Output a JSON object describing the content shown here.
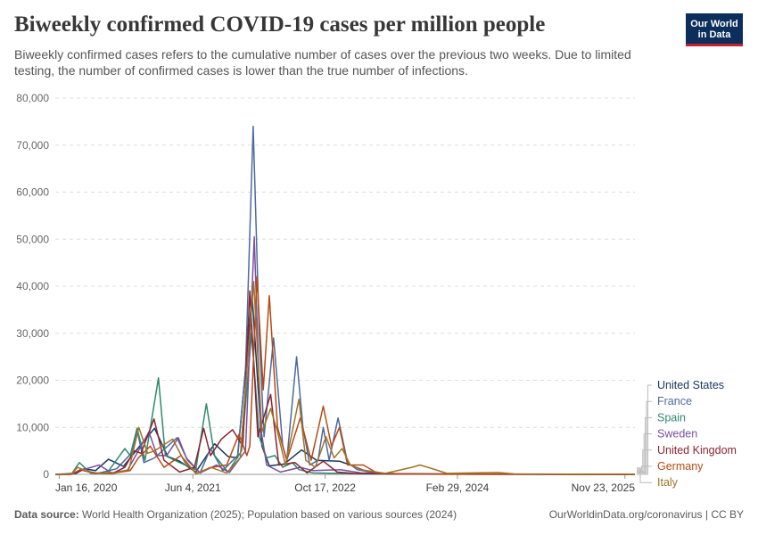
{
  "title": "Biweekly confirmed COVID-19 cases per million people",
  "subtitle": "Biweekly confirmed cases refers to the cumulative number of cases over the previous two weeks. Due to limited testing, the number of confirmed cases is lower than the true number of infections.",
  "logo": {
    "line1": "Our World",
    "line2": "in Data"
  },
  "footer": {
    "source_label": "Data source:",
    "source_text": "World Health Organization (2025); Population based on various sources (2024)",
    "right_text": "OurWorldinData.org/coronavirus | CC BY"
  },
  "chart_data": {
    "type": "line",
    "title": "Biweekly confirmed COVID-19 cases per million people",
    "xlabel": "",
    "ylabel": "",
    "ylim": [
      0,
      80000
    ],
    "yticks": [
      0,
      10000,
      20000,
      30000,
      40000,
      50000,
      60000,
      70000,
      80000
    ],
    "ytick_labels": [
      "0",
      "10,000",
      "20,000",
      "30,000",
      "40,000",
      "50,000",
      "60,000",
      "70,000",
      "80,000"
    ],
    "xlim": [
      "2020-01-01",
      "2025-12-31"
    ],
    "xticks": [
      "2020-01-16",
      "2021-06-04",
      "2022-10-17",
      "2024-02-29",
      "2025-11-23"
    ],
    "xtick_labels": [
      "Jan 16, 2020",
      "Jun 4, 2021",
      "Oct 17, 2022",
      "Feb 29, 2024",
      "Nov 23, 2025"
    ],
    "grid": "horizontal",
    "legend_position": "right",
    "series": [
      {
        "name": "United States",
        "color": "#18365e",
        "points": [
          [
            "2020-01-01",
            0
          ],
          [
            "2020-03-20",
            200
          ],
          [
            "2020-04-20",
            1200
          ],
          [
            "2020-06-01",
            800
          ],
          [
            "2020-07-20",
            3200
          ],
          [
            "2020-09-15",
            1700
          ],
          [
            "2020-11-15",
            6000
          ],
          [
            "2021-01-10",
            9800
          ],
          [
            "2021-03-01",
            3800
          ],
          [
            "2021-04-15",
            2800
          ],
          [
            "2021-06-15",
            500
          ],
          [
            "2021-08-25",
            6500
          ],
          [
            "2021-10-15",
            3800
          ],
          [
            "2021-11-20",
            3500
          ],
          [
            "2022-01-14",
            38000
          ],
          [
            "2022-02-20",
            6000
          ],
          [
            "2022-03-20",
            1800
          ],
          [
            "2022-05-15",
            2200
          ],
          [
            "2022-07-20",
            5200
          ],
          [
            "2022-09-15",
            3000
          ],
          [
            "2022-12-10",
            2800
          ],
          [
            "2023-01-20",
            2000
          ],
          [
            "2023-03-15",
            800
          ],
          [
            "2023-05-01",
            200
          ],
          [
            "2023-08-01",
            150
          ],
          [
            "2024-01-01",
            100
          ],
          [
            "2025-12-31",
            0
          ]
        ]
      },
      {
        "name": "France",
        "color": "#4c6a9c",
        "points": [
          [
            "2020-01-01",
            0
          ],
          [
            "2020-03-01",
            0
          ],
          [
            "2020-04-05",
            1000
          ],
          [
            "2020-06-01",
            100
          ],
          [
            "2020-08-20",
            1200
          ],
          [
            "2020-10-15",
            4500
          ],
          [
            "2020-11-05",
            9500
          ],
          [
            "2020-12-01",
            2500
          ],
          [
            "2021-01-10",
            3500
          ],
          [
            "2021-04-05",
            7800
          ],
          [
            "2021-05-15",
            3000
          ],
          [
            "2021-07-01",
            300
          ],
          [
            "2021-08-10",
            5500
          ],
          [
            "2021-09-25",
            800
          ],
          [
            "2021-11-20",
            4000
          ],
          [
            "2021-12-20",
            22000
          ],
          [
            "2022-01-18",
            74000
          ],
          [
            "2022-02-10",
            30000
          ],
          [
            "2022-02-28",
            8000
          ],
          [
            "2022-04-05",
            29000
          ],
          [
            "2022-05-10",
            6000
          ],
          [
            "2022-05-25",
            3000
          ],
          [
            "2022-07-01",
            25000
          ],
          [
            "2022-07-25",
            10000
          ],
          [
            "2022-08-20",
            2000
          ],
          [
            "2022-09-20",
            3000
          ],
          [
            "2022-10-10",
            10000
          ],
          [
            "2022-11-01",
            3000
          ],
          [
            "2022-12-05",
            12000
          ],
          [
            "2023-01-10",
            2500
          ],
          [
            "2023-02-15",
            1000
          ],
          [
            "2023-05-01",
            200
          ],
          [
            "2023-08-01",
            100
          ],
          [
            "2024-01-01",
            50
          ],
          [
            "2025-12-31",
            0
          ]
        ]
      },
      {
        "name": "Spain",
        "color": "#2e8a6e",
        "points": [
          [
            "2020-01-01",
            0
          ],
          [
            "2020-03-01",
            0
          ],
          [
            "2020-04-01",
            2500
          ],
          [
            "2020-05-15",
            200
          ],
          [
            "2020-07-15",
            300
          ],
          [
            "2020-09-20",
            5500
          ],
          [
            "2020-10-10",
            4000
          ],
          [
            "2020-11-05",
            9800
          ],
          [
            "2020-12-05",
            3000
          ],
          [
            "2021-01-25",
            20500
          ],
          [
            "2021-02-20",
            4000
          ],
          [
            "2021-04-15",
            2500
          ],
          [
            "2021-06-15",
            1000
          ],
          [
            "2021-07-25",
            15000
          ],
          [
            "2021-08-25",
            4000
          ],
          [
            "2021-10-15",
            500
          ],
          [
            "2021-12-05",
            5000
          ],
          [
            "2022-01-12",
            30000
          ],
          [
            "2022-02-10",
            8000
          ],
          [
            "2022-03-10",
            3500
          ],
          [
            "2022-04-10",
            4000
          ],
          [
            "2022-05-10",
            1500
          ],
          [
            "2022-06-15",
            2500
          ],
          [
            "2022-07-10",
            1000
          ],
          [
            "2022-09-01",
            300
          ],
          [
            "2022-12-01",
            200
          ],
          [
            "2023-03-01",
            100
          ],
          [
            "2023-08-01",
            50
          ],
          [
            "2024-01-01",
            30
          ],
          [
            "2025-12-31",
            0
          ]
        ]
      },
      {
        "name": "Sweden",
        "color": "#7b4fa0",
        "points": [
          [
            "2020-01-01",
            0
          ],
          [
            "2020-03-01",
            0
          ],
          [
            "2020-04-15",
            1000
          ],
          [
            "2020-06-15",
            2000
          ],
          [
            "2020-08-01",
            300
          ],
          [
            "2020-09-30",
            900
          ],
          [
            "2020-11-15",
            5500
          ],
          [
            "2020-12-20",
            9000
          ],
          [
            "2021-01-20",
            4000
          ],
          [
            "2021-02-25",
            4000
          ],
          [
            "2021-04-10",
            7800
          ],
          [
            "2021-05-10",
            3500
          ],
          [
            "2021-07-01",
            300
          ],
          [
            "2021-09-01",
            2000
          ],
          [
            "2021-10-20",
            400
          ],
          [
            "2021-12-20",
            5000
          ],
          [
            "2022-01-22",
            50500
          ],
          [
            "2022-02-15",
            10000
          ],
          [
            "2022-03-10",
            2000
          ],
          [
            "2022-05-01",
            500
          ],
          [
            "2022-07-15",
            1500
          ],
          [
            "2022-09-01",
            800
          ],
          [
            "2022-12-15",
            1000
          ],
          [
            "2023-03-01",
            300
          ],
          [
            "2023-08-01",
            100
          ],
          [
            "2024-01-01",
            50
          ],
          [
            "2025-12-31",
            0
          ]
        ]
      },
      {
        "name": "United Kingdom",
        "color": "#8b2332",
        "points": [
          [
            "2020-01-01",
            0
          ],
          [
            "2020-03-01",
            0
          ],
          [
            "2020-04-10",
            900
          ],
          [
            "2020-06-01",
            300
          ],
          [
            "2020-08-01",
            100
          ],
          [
            "2020-09-20",
            1500
          ],
          [
            "2020-10-25",
            5000
          ],
          [
            "2020-11-20",
            4500
          ],
          [
            "2021-01-08",
            11800
          ],
          [
            "2021-02-15",
            3000
          ],
          [
            "2021-04-15",
            500
          ],
          [
            "2021-06-10",
            1500
          ],
          [
            "2021-07-15",
            9800
          ],
          [
            "2021-08-10",
            4000
          ],
          [
            "2021-09-20",
            7500
          ],
          [
            "2021-11-01",
            9500
          ],
          [
            "2021-12-10",
            6000
          ],
          [
            "2022-01-05",
            39000
          ],
          [
            "2022-02-05",
            8000
          ],
          [
            "2022-03-25",
            17000
          ],
          [
            "2022-04-25",
            2000
          ],
          [
            "2022-06-25",
            2500
          ],
          [
            "2022-08-10",
            300
          ],
          [
            "2022-10-10",
            2800
          ],
          [
            "2022-12-01",
            500
          ],
          [
            "2023-02-01",
            200
          ],
          [
            "2023-06-01",
            100
          ],
          [
            "2024-01-01",
            20
          ],
          [
            "2025-12-31",
            0
          ]
        ]
      },
      {
        "name": "Germany",
        "color": "#b54a13",
        "points": [
          [
            "2020-01-01",
            0
          ],
          [
            "2020-03-01",
            0
          ],
          [
            "2020-04-05",
            1000
          ],
          [
            "2020-06-01",
            200
          ],
          [
            "2020-08-15",
            300
          ],
          [
            "2020-10-10",
            800
          ],
          [
            "2020-11-10",
            3500
          ],
          [
            "2020-12-25",
            6000
          ],
          [
            "2021-02-15",
            1500
          ],
          [
            "2021-04-20",
            4000
          ],
          [
            "2021-06-15",
            200
          ],
          [
            "2021-08-15",
            1500
          ],
          [
            "2021-10-10",
            2000
          ],
          [
            "2021-11-25",
            8500
          ],
          [
            "2021-12-25",
            4000
          ],
          [
            "2022-01-05",
            6000
          ],
          [
            "2022-02-01",
            42000
          ],
          [
            "2022-02-25",
            18000
          ],
          [
            "2022-03-20",
            38000
          ],
          [
            "2022-04-20",
            10000
          ],
          [
            "2022-05-25",
            3000
          ],
          [
            "2022-07-15",
            12000
          ],
          [
            "2022-08-25",
            3000
          ],
          [
            "2022-10-10",
            14500
          ],
          [
            "2022-11-10",
            6000
          ],
          [
            "2022-12-10",
            10000
          ],
          [
            "2023-01-10",
            2000
          ],
          [
            "2023-03-10",
            2000
          ],
          [
            "2023-05-01",
            300
          ],
          [
            "2023-08-01",
            100
          ],
          [
            "2024-01-01",
            50
          ],
          [
            "2025-12-31",
            0
          ]
        ]
      },
      {
        "name": "Italy",
        "color": "#a0722a",
        "points": [
          [
            "2020-01-01",
            0
          ],
          [
            "2020-03-01",
            0
          ],
          [
            "2020-03-25",
            1500
          ],
          [
            "2020-05-15",
            300
          ],
          [
            "2020-08-01",
            100
          ],
          [
            "2020-10-05",
            1000
          ],
          [
            "2020-11-12",
            10000
          ],
          [
            "2020-12-15",
            4500
          ],
          [
            "2021-01-10",
            5000
          ],
          [
            "2021-03-20",
            7500
          ],
          [
            "2021-05-05",
            2500
          ],
          [
            "2021-06-20",
            200
          ],
          [
            "2021-08-10",
            1500
          ],
          [
            "2021-10-10",
            300
          ],
          [
            "2021-11-30",
            3500
          ],
          [
            "2022-01-20",
            41000
          ],
          [
            "2022-02-20",
            9000
          ],
          [
            "2022-03-25",
            14000
          ],
          [
            "2022-04-20",
            9000
          ],
          [
            "2022-05-20",
            2000
          ],
          [
            "2022-07-10",
            16000
          ],
          [
            "2022-08-05",
            3000
          ],
          [
            "2022-09-10",
            1500
          ],
          [
            "2022-10-20",
            8000
          ],
          [
            "2022-11-20",
            3500
          ],
          [
            "2022-12-20",
            5500
          ],
          [
            "2023-01-20",
            2000
          ],
          [
            "2023-03-01",
            1000
          ],
          [
            "2023-06-01",
            200
          ],
          [
            "2023-09-10",
            1500
          ],
          [
            "2023-10-10",
            2000
          ],
          [
            "2023-11-10",
            1500
          ],
          [
            "2024-01-20",
            200
          ],
          [
            "2024-08-01",
            400
          ],
          [
            "2024-10-01",
            100
          ],
          [
            "2025-12-31",
            0
          ]
        ]
      }
    ]
  }
}
